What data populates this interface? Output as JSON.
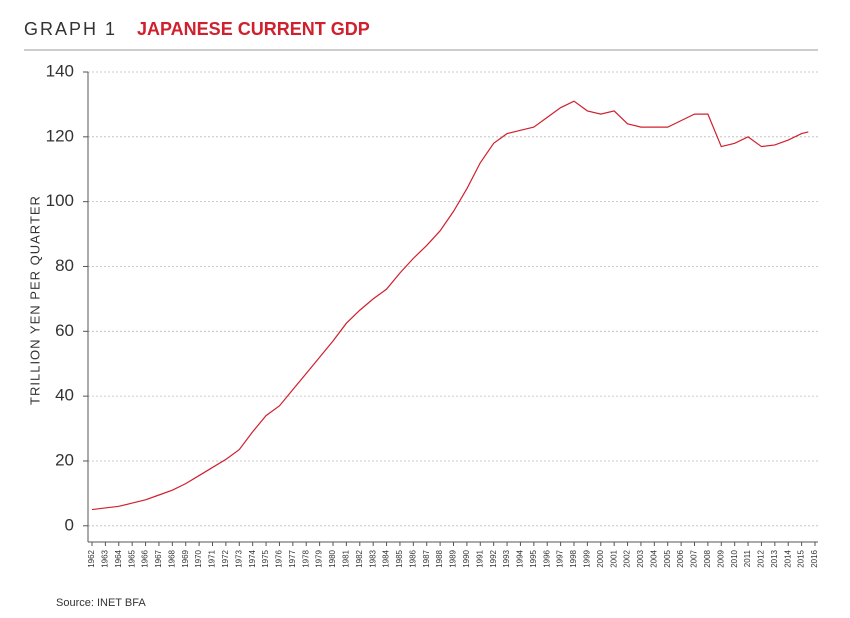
{
  "chart_data": {
    "type": "line",
    "label": "GRAPH 1",
    "title": "JAPANESE CURRENT GDP",
    "y_label": "TRILLION YEN PER QUARTER",
    "source": "Source: INET BFA",
    "x": [
      1962,
      1963,
      1964,
      1965,
      1966,
      1967,
      1968,
      1969,
      1970,
      1971,
      1972,
      1973,
      1974,
      1975,
      1976,
      1977,
      1978,
      1979,
      1980,
      1981,
      1982,
      1983,
      1984,
      1985,
      1986,
      1987,
      1988,
      1989,
      1990,
      1991,
      1992,
      1993,
      1994,
      1995,
      1996,
      1997,
      1998,
      1999,
      2000,
      2001,
      2002,
      2003,
      2004,
      2005,
      2006,
      2007,
      2008,
      2009,
      2010,
      2011,
      2012,
      2013,
      2014,
      2015,
      2015.5
    ],
    "series": [
      {
        "name": "GDP",
        "color": "#d0202e",
        "values": [
          5,
          5.5,
          6,
          7,
          8,
          9.5,
          11,
          13,
          15.5,
          18,
          20.5,
          23.5,
          29,
          34,
          37,
          42,
          47,
          52,
          57,
          62.5,
          66.5,
          70,
          73,
          78,
          82.5,
          86.5,
          91,
          97,
          104,
          112,
          118,
          121,
          122,
          123,
          126,
          129,
          131,
          128,
          127,
          128,
          124,
          123,
          123,
          123,
          125,
          127,
          127,
          117,
          118,
          120,
          117,
          117.5,
          119,
          121,
          121.5
        ]
      }
    ],
    "xlim": [
      1962,
      2016
    ],
    "xticks": [
      1962,
      1963,
      1964,
      1965,
      1966,
      1967,
      1968,
      1969,
      1970,
      1971,
      1972,
      1973,
      1974,
      1975,
      1976,
      1977,
      1978,
      1979,
      1980,
      1981,
      1982,
      1983,
      1984,
      1985,
      1986,
      1987,
      1988,
      1989,
      1990,
      1991,
      1992,
      1993,
      1994,
      1995,
      1996,
      1997,
      1998,
      1999,
      2000,
      2001,
      2002,
      2003,
      2004,
      2005,
      2006,
      2007,
      2008,
      2009,
      2010,
      2011,
      2012,
      2013,
      2014,
      2015,
      2016
    ],
    "ylim": [
      -5,
      140
    ],
    "yticks": [
      0,
      20,
      40,
      60,
      80,
      100,
      120,
      140
    ],
    "grid": true
  }
}
